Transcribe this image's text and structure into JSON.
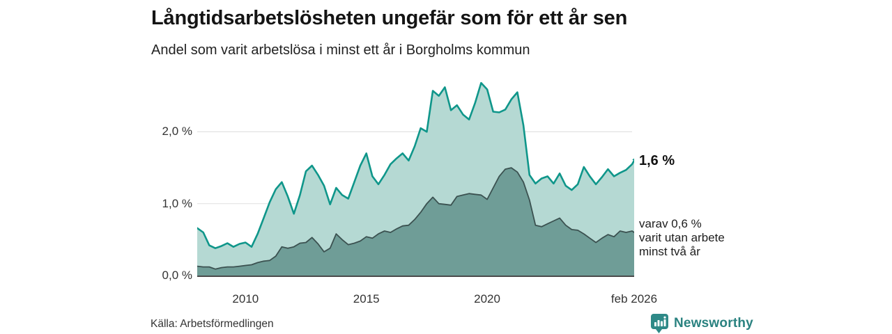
{
  "annotations": {
    "end_value": "1,6 %",
    "secondary": [
      "varav 0,6 %",
      "varit utan arbete",
      "minst två år"
    ]
  },
  "footer": {
    "source": "Källa: Arbetsförmedlingen",
    "logo_text": "Newsworthy",
    "logo_icon": "newsworthy-barchart-pin-icon"
  },
  "colors": {
    "line_total": "#0f968a",
    "fill_total": "#b5d9d3",
    "line_two_years": "#3b5150",
    "fill_two_years": "#6f9d97",
    "gridline": "#e2e2e2",
    "axis": "#4a4a4a",
    "logo": "#2e8987",
    "text": "#1d1d1d"
  },
  "chart_data": {
    "type": "area",
    "title": "Långtidsarbetslösheten ungefär som för ett år sen",
    "subtitle": "Andel som varit arbetslösa i minst ett år i Borgholms kommun",
    "xlabel": "",
    "ylabel": "",
    "x_unit": "decimal year (monthly series, jan 2008 – feb 2026)",
    "xlim": [
      2008,
      2026.0833
    ],
    "ylim": [
      0,
      2.8655
    ],
    "grid": "horizontal",
    "legend": "none",
    "yticks": [
      {
        "v": 0,
        "label": "0,0 %"
      },
      {
        "v": 1,
        "label": "1,0 %"
      },
      {
        "v": 2,
        "label": "2,0 %"
      }
    ],
    "xticks": [
      {
        "t": 2010,
        "label": "2010"
      },
      {
        "t": 2015,
        "label": "2015"
      },
      {
        "t": 2020,
        "label": "2020"
      },
      {
        "t": 2026.0833,
        "label": "feb 2026"
      }
    ],
    "x": [
      2008,
      2008.25,
      2008.5,
      2008.75,
      2009,
      2009.25,
      2009.5,
      2009.75,
      2010,
      2010.25,
      2010.5,
      2010.75,
      2011,
      2011.25,
      2011.5,
      2011.75,
      2012,
      2012.25,
      2012.5,
      2012.75,
      2013,
      2013.25,
      2013.5,
      2013.75,
      2014,
      2014.25,
      2014.5,
      2014.75,
      2015,
      2015.25,
      2015.5,
      2015.75,
      2016,
      2016.25,
      2016.5,
      2016.75,
      2017,
      2017.25,
      2017.5,
      2017.75,
      2018,
      2018.25,
      2018.5,
      2018.75,
      2019,
      2019.25,
      2019.5,
      2019.75,
      2020,
      2020.25,
      2020.5,
      2020.75,
      2021,
      2021.25,
      2021.5,
      2021.75,
      2022,
      2022.25,
      2022.5,
      2022.75,
      2023,
      2023.25,
      2023.5,
      2023.75,
      2024,
      2024.25,
      2024.5,
      2024.75,
      2025,
      2025.25,
      2025.5,
      2025.75,
      2026,
      2026.0833
    ],
    "series": [
      {
        "name": "Arbetslösa minst ett år",
        "end_value_pct": 1.6,
        "line_color": "#0f968a",
        "fill_color": "#b5d9d3",
        "values": [
          0.66,
          0.6,
          0.42,
          0.38,
          0.41,
          0.45,
          0.4,
          0.44,
          0.46,
          0.4,
          0.58,
          0.8,
          1.02,
          1.2,
          1.3,
          1.1,
          0.86,
          1.12,
          1.45,
          1.53,
          1.4,
          1.25,
          0.99,
          1.22,
          1.12,
          1.07,
          1.3,
          1.53,
          1.7,
          1.38,
          1.27,
          1.4,
          1.55,
          1.63,
          1.7,
          1.6,
          1.8,
          2.05,
          2.0,
          2.57,
          2.5,
          2.62,
          2.3,
          2.37,
          2.24,
          2.17,
          2.4,
          2.68,
          2.59,
          2.28,
          2.27,
          2.31,
          2.45,
          2.55,
          2.09,
          1.4,
          1.28,
          1.35,
          1.38,
          1.28,
          1.42,
          1.25,
          1.19,
          1.27,
          1.51,
          1.38,
          1.27,
          1.37,
          1.48,
          1.38,
          1.43,
          1.47,
          1.55,
          1.6
        ]
      },
      {
        "name": "Varav utan arbete minst två år",
        "end_value_pct": 0.6,
        "line_color": "#3b5150",
        "fill_color": "#6f9d97",
        "values": [
          0.13,
          0.12,
          0.12,
          0.09,
          0.11,
          0.12,
          0.12,
          0.13,
          0.14,
          0.15,
          0.18,
          0.2,
          0.21,
          0.27,
          0.4,
          0.38,
          0.4,
          0.45,
          0.46,
          0.53,
          0.44,
          0.33,
          0.38,
          0.58,
          0.5,
          0.43,
          0.45,
          0.48,
          0.54,
          0.52,
          0.58,
          0.62,
          0.6,
          0.65,
          0.69,
          0.7,
          0.78,
          0.88,
          1.0,
          1.09,
          1.0,
          0.99,
          0.98,
          1.1,
          1.12,
          1.14,
          1.13,
          1.12,
          1.06,
          1.22,
          1.38,
          1.48,
          1.5,
          1.44,
          1.3,
          1.05,
          0.7,
          0.68,
          0.72,
          0.76,
          0.8,
          0.7,
          0.64,
          0.63,
          0.58,
          0.52,
          0.46,
          0.52,
          0.57,
          0.54,
          0.62,
          0.6,
          0.62,
          0.6
        ]
      }
    ]
  }
}
